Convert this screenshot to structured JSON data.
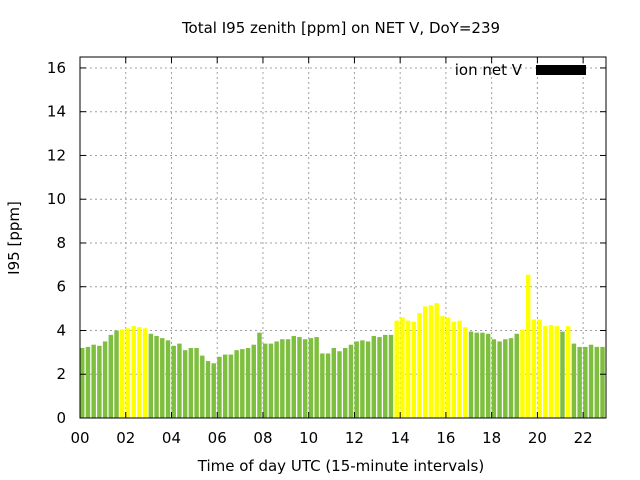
{
  "chart_data": {
    "type": "bar",
    "title": "Total I95 zenith [ppm] on NET V, DoY=239",
    "xlabel": "Time of day UTC (15-minute intervals)",
    "ylabel": "I95 [ppm]",
    "xlim": [
      0,
      23
    ],
    "ylim": [
      0,
      16.5
    ],
    "xtick_values": [
      0,
      2,
      4,
      6,
      8,
      10,
      12,
      14,
      16,
      18,
      20,
      22
    ],
    "xtick_labels": [
      "00",
      "02",
      "04",
      "06",
      "08",
      "10",
      "12",
      "14",
      "16",
      "18",
      "20",
      "22"
    ],
    "ytick_values": [
      0,
      2,
      4,
      6,
      8,
      10,
      12,
      14,
      16
    ],
    "ytick_labels": [
      "0",
      "2",
      "4",
      "6",
      "8",
      "10",
      "12",
      "14",
      "16"
    ],
    "grid": true,
    "legend": {
      "label": "ion net V",
      "color": "#000000",
      "position": "top-right"
    },
    "colors": {
      "normal": "#7fbf3f",
      "elevated": "#ffff00"
    },
    "interval_hours": 0.25,
    "values": [
      3.2,
      3.25,
      3.35,
      3.3,
      3.5,
      3.8,
      4.0,
      4.05,
      4.1,
      4.2,
      4.15,
      4.1,
      3.85,
      3.75,
      3.65,
      3.55,
      3.3,
      3.4,
      3.1,
      3.2,
      3.2,
      2.85,
      2.6,
      2.5,
      2.8,
      2.9,
      2.9,
      3.1,
      3.15,
      3.2,
      3.35,
      3.9,
      3.4,
      3.4,
      3.5,
      3.6,
      3.6,
      3.75,
      3.7,
      3.6,
      3.65,
      3.7,
      2.95,
      2.95,
      3.2,
      3.05,
      3.2,
      3.35,
      3.5,
      3.55,
      3.5,
      3.75,
      3.7,
      3.8,
      3.8,
      4.45,
      4.6,
      4.45,
      4.4,
      4.8,
      5.1,
      5.15,
      5.25,
      4.65,
      4.6,
      4.4,
      4.45,
      4.15,
      3.95,
      3.9,
      3.9,
      3.85,
      3.6,
      3.5,
      3.6,
      3.65,
      3.85,
      4.05,
      6.55,
      4.5,
      4.5,
      4.2,
      4.25,
      4.2,
      3.95,
      4.2,
      3.4,
      3.25,
      3.25,
      3.35,
      3.25,
      3.25,
      3.35,
      3.0
    ],
    "elevated": [
      0,
      0,
      0,
      0,
      0,
      0,
      0,
      1,
      1,
      1,
      1,
      1,
      0,
      0,
      0,
      0,
      0,
      0,
      0,
      0,
      0,
      0,
      0,
      0,
      0,
      0,
      0,
      0,
      0,
      0,
      0,
      0,
      0,
      0,
      0,
      0,
      0,
      0,
      0,
      0,
      0,
      0,
      0,
      0,
      0,
      0,
      0,
      0,
      0,
      0,
      0,
      0,
      0,
      0,
      0,
      1,
      1,
      1,
      1,
      1,
      1,
      1,
      1,
      1,
      1,
      1,
      1,
      1,
      0,
      0,
      0,
      0,
      0,
      0,
      0,
      0,
      0,
      1,
      1,
      1,
      1,
      1,
      1,
      1,
      0,
      1,
      0,
      0,
      0,
      0,
      0,
      0,
      0,
      0
    ]
  }
}
